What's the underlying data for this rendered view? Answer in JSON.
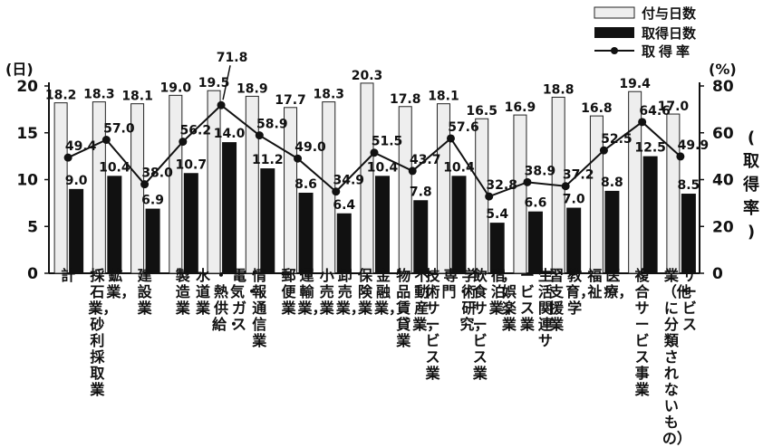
{
  "chart_data": {
    "type": "bar",
    "legend": {
      "entries": [
        "付与日数",
        "取得日数",
        "取得率"
      ],
      "position": "top-right"
    },
    "left_axis": {
      "unit": "(日)",
      "ticks": [
        "0",
        "5",
        "10",
        "15",
        "20"
      ],
      "range": [
        0,
        20
      ]
    },
    "right_axis": {
      "unit": "(%)",
      "ticks": [
        "0",
        "20",
        "40",
        "60",
        "80"
      ],
      "range": [
        0,
        80
      ],
      "label": "(取得率)"
    },
    "categories": [
      {
        "label": "計"
      },
      {
        "label": "鉱業，採石業，砂利採取業"
      },
      {
        "label": "建設業"
      },
      {
        "label": "製造業"
      },
      {
        "label": "電気・ガス・熱供給・水道業"
      },
      {
        "label": "情報通信業"
      },
      {
        "label": "運輸業，郵便業"
      },
      {
        "label": "卸売業，小売業"
      },
      {
        "label": "金融業，保険業"
      },
      {
        "label": "不動産業，物品賃貸業"
      },
      {
        "label": "学術研究，専門・技術サービス業"
      },
      {
        "label": "宿泊業，飲食サービス業"
      },
      {
        "label": "生活関連サービス業，娯楽業"
      },
      {
        "label": "教育，学習支援業"
      },
      {
        "label": "医療，福祉"
      },
      {
        "label": "複合サービス事業"
      },
      {
        "label": "サービス業（他に分類されないもの）"
      }
    ],
    "series": [
      {
        "name": "付与日数",
        "axis": "left",
        "values": [
          18.2,
          18.3,
          18.1,
          19.0,
          19.5,
          18.9,
          17.7,
          18.3,
          20.3,
          17.8,
          18.1,
          16.5,
          16.9,
          18.8,
          16.8,
          19.4,
          17.0
        ]
      },
      {
        "name": "取得日数",
        "axis": "left",
        "values": [
          9.0,
          10.4,
          6.9,
          10.7,
          14.0,
          11.2,
          8.6,
          6.4,
          10.4,
          7.8,
          10.4,
          5.4,
          6.6,
          7.0,
          8.8,
          12.5,
          8.5
        ]
      },
      {
        "name": "取得率",
        "axis": "right",
        "values": [
          49.4,
          57.0,
          38.0,
          56.2,
          71.8,
          58.9,
          49.0,
          34.9,
          51.5,
          43.7,
          57.6,
          32.8,
          38.9,
          37.2,
          52.5,
          64.6,
          49.9
        ]
      }
    ],
    "granted_labels": [
      "18.2",
      "18.3",
      "18.1",
      "19.0",
      "19.5",
      "18.9",
      "17.7",
      "18.3",
      "20.3",
      "17.8",
      "18.1",
      "16.5",
      "16.9",
      "18.8",
      "16.8",
      "19.4",
      "17.0"
    ],
    "taken_labels": [
      "9.0",
      "10.4",
      "6.9",
      "10.7",
      "14.0",
      "11.2",
      "8.6",
      "6.4",
      "10.4",
      "7.8",
      "10.4",
      "5.4",
      "6.6",
      "7.0",
      "8.8",
      "12.5",
      "8.5"
    ],
    "rate_labels": [
      "49.4",
      "57.0",
      "38.0",
      "56.2",
      "71.8",
      "58.9",
      "49.0",
      "34.9",
      "51.5",
      "43.7",
      "57.6",
      "32.8",
      "38.9",
      "37.2",
      "52.5",
      "64.6",
      "49.9"
    ],
    "colors": {
      "granted_fill": "#eeeeee",
      "taken_fill": "#111111",
      "line": "#111111"
    }
  }
}
